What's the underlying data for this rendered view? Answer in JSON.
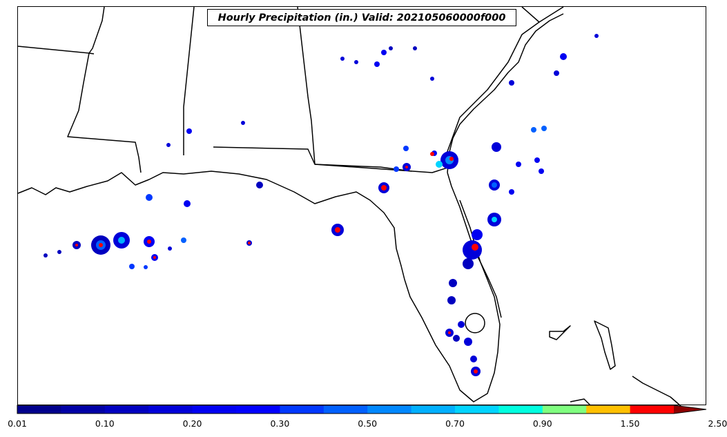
{
  "map": {
    "title": "Hourly Precipitation (in.) Valid: 202105060000f000",
    "colors": {
      "land_line": "#000000",
      "background": "#ffffff"
    }
  },
  "colorbar": {
    "colors": [
      "#00008c",
      "#0000a6",
      "#0000c0",
      "#0000d9",
      "#0000f2",
      "#0000ff",
      "#0038ff",
      "#0060ff",
      "#0088ff",
      "#00b0ff",
      "#00d4ff",
      "#00ffe0",
      "#80ff80",
      "#ffc000",
      "#ff0000",
      "#8c0000"
    ],
    "tick_labels": [
      "0.01",
      "0.10",
      "0.20",
      "0.30",
      "0.50",
      "0.70",
      "0.90",
      "1.50",
      "2.50"
    ],
    "extend": "max"
  }
}
